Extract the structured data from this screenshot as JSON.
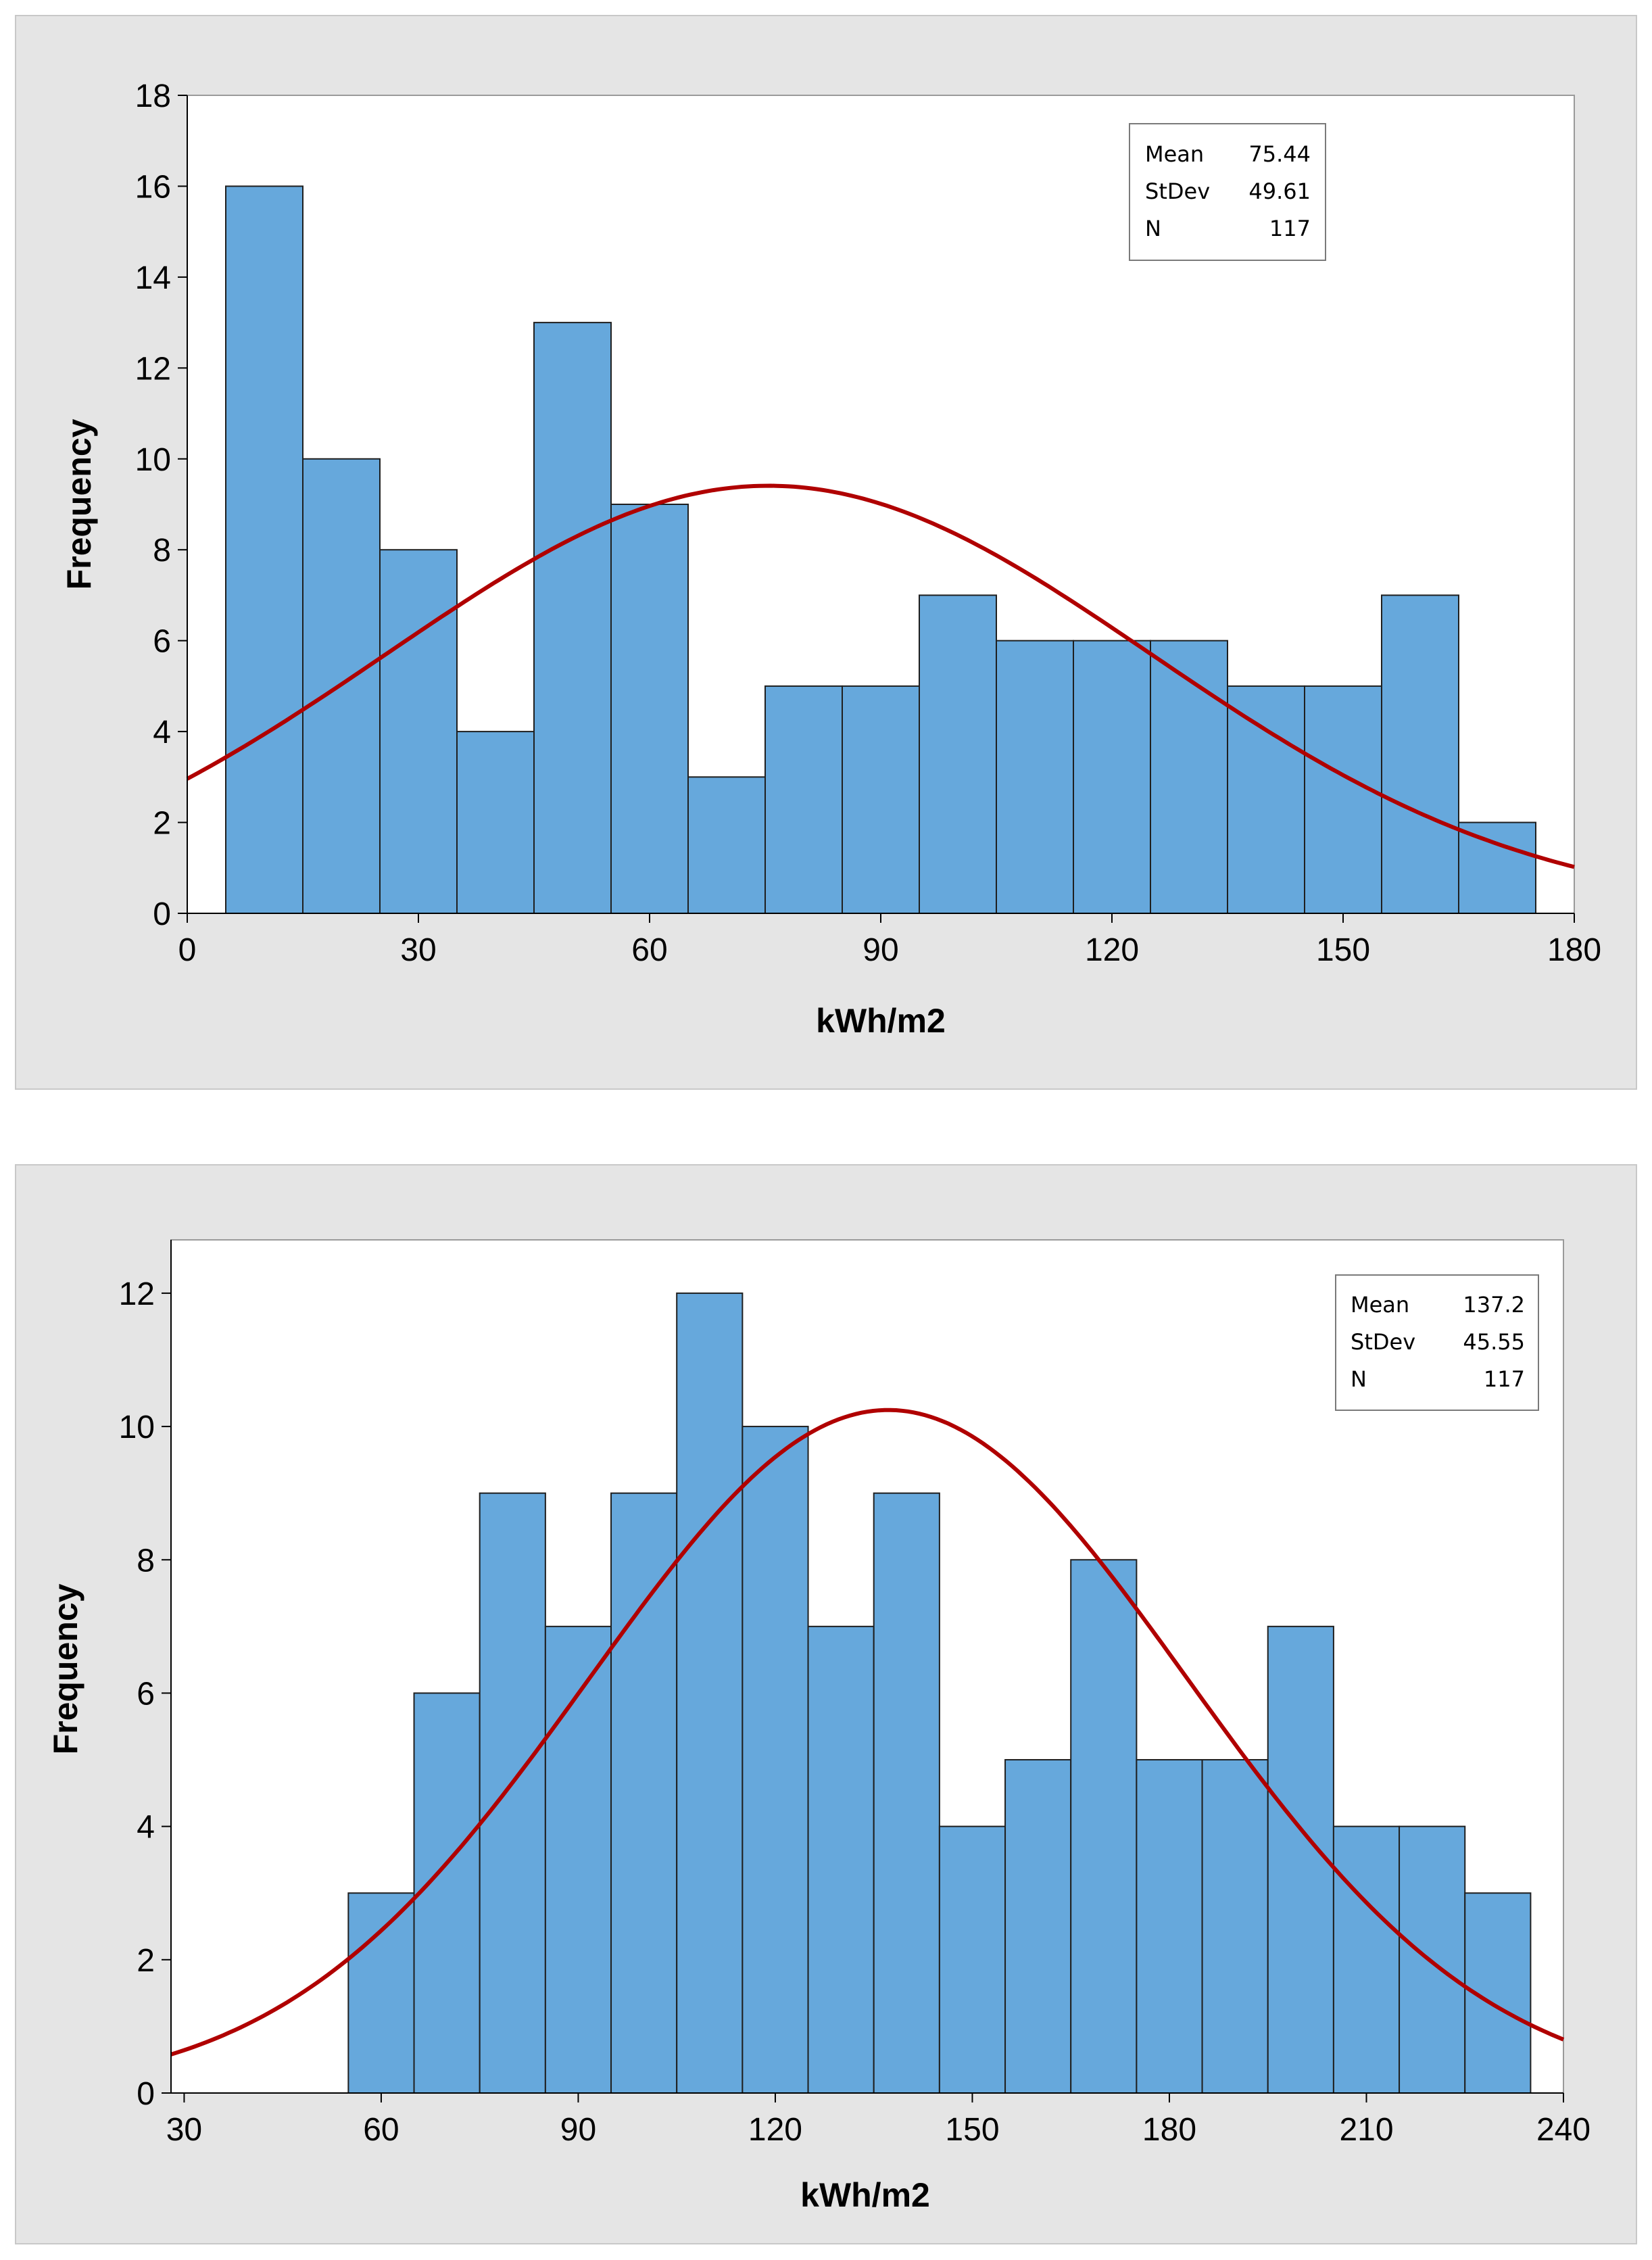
{
  "chart_data": [
    {
      "type": "bar",
      "bin_centers": [
        10,
        20,
        30,
        40,
        50,
        60,
        70,
        80,
        90,
        100,
        110,
        120,
        130,
        140,
        150,
        160,
        170
      ],
      "bin_width": 10,
      "values": [
        16,
        10,
        8,
        4,
        13,
        9,
        3,
        5,
        5,
        7,
        6,
        6,
        6,
        5,
        5,
        7,
        2
      ],
      "xticks": [
        0,
        30,
        60,
        90,
        120,
        150,
        180
      ],
      "yticks": [
        0,
        2,
        4,
        6,
        8,
        10,
        12,
        14,
        16,
        18
      ],
      "xlim": [
        0,
        180
      ],
      "ylim": [
        0,
        18
      ],
      "xlabel": "kWh/m2",
      "ylabel": "Frequency",
      "fit": {
        "type": "normal",
        "mean": 75.44,
        "stdev": 49.61,
        "n": 117
      },
      "stats": {
        "mean_label": "Mean",
        "mean": "75.44",
        "stdev_label": "StDev",
        "stdev": "49.61",
        "n_label": "N",
        "n": "117"
      },
      "colors": {
        "bar": "#66a8dc",
        "bar_edge": "#1f1f1f",
        "curve": "#b00000"
      }
    },
    {
      "type": "bar",
      "bin_centers": [
        60,
        70,
        80,
        90,
        100,
        110,
        120,
        130,
        140,
        150,
        160,
        170,
        180,
        190,
        200,
        210,
        220,
        230
      ],
      "bin_width": 10,
      "values": [
        3,
        6,
        9,
        7,
        9,
        12,
        10,
        7,
        9,
        4,
        5,
        8,
        5,
        5,
        7,
        4,
        4,
        3
      ],
      "xticks": [
        30,
        60,
        90,
        120,
        150,
        180,
        210,
        240
      ],
      "yticks": [
        0,
        2,
        4,
        6,
        8,
        10,
        12
      ],
      "xlim": [
        28,
        240
      ],
      "ylim": [
        0,
        12.8
      ],
      "xlabel": "kWh/m2",
      "ylabel": "Frequency",
      "fit": {
        "type": "normal",
        "mean": 137.2,
        "stdev": 45.55,
        "n": 117
      },
      "stats": {
        "mean_label": "Mean",
        "mean": "137.2",
        "stdev_label": "StDev",
        "stdev": "45.55",
        "n_label": "N",
        "n": "117"
      },
      "colors": {
        "bar": "#66a8dc",
        "bar_edge": "#1f1f1f",
        "curve": "#b00000"
      }
    }
  ]
}
